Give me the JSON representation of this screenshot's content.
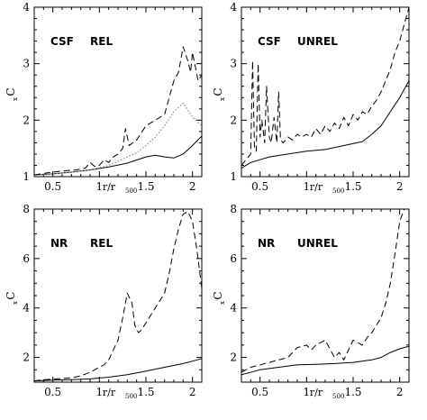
{
  "chart_data": [
    {
      "type": "line",
      "panel": "CSF REL",
      "labels": [
        "CSF",
        "REL"
      ],
      "xlabel": "r/r",
      "xlabel_sub": "500",
      "ylabel": "C",
      "ylabel_sub": "x",
      "xlim": [
        0.3,
        2.1
      ],
      "ylim": [
        1,
        4
      ],
      "xticks": [
        0.5,
        1,
        1.5,
        2
      ],
      "xtick_labels": [
        "0.5",
        "1",
        "1.5",
        "2"
      ],
      "yticks": [
        1,
        2,
        3,
        4
      ],
      "ytick_labels": [
        "1",
        "2",
        "3",
        "4"
      ],
      "series": [
        {
          "style": "solid",
          "x": [
            0.3,
            0.5,
            0.7,
            0.9,
            1.1,
            1.3,
            1.5,
            1.6,
            1.7,
            1.8,
            1.9,
            2.0,
            2.1
          ],
          "y": [
            1.03,
            1.05,
            1.08,
            1.12,
            1.17,
            1.24,
            1.35,
            1.38,
            1.35,
            1.33,
            1.4,
            1.55,
            1.72
          ]
        },
        {
          "style": "dotted",
          "x": [
            0.3,
            0.5,
            0.7,
            0.9,
            1.1,
            1.2,
            1.3,
            1.4,
            1.5,
            1.6,
            1.7,
            1.8,
            1.9,
            2.0,
            2.1
          ],
          "y": [
            1.03,
            1.05,
            1.08,
            1.12,
            1.2,
            1.27,
            1.35,
            1.42,
            1.55,
            1.7,
            1.9,
            2.15,
            2.3,
            2.05,
            1.9
          ]
        },
        {
          "style": "dashed",
          "x": [
            0.3,
            0.45,
            0.6,
            0.75,
            0.85,
            0.9,
            0.95,
            1.0,
            1.05,
            1.1,
            1.15,
            1.2,
            1.25,
            1.28,
            1.32,
            1.4,
            1.5,
            1.6,
            1.7,
            1.75,
            1.8,
            1.85,
            1.9,
            1.95,
            1.98,
            2.0,
            2.03,
            2.06,
            2.1
          ],
          "y": [
            1.03,
            1.07,
            1.1,
            1.12,
            1.15,
            1.25,
            1.18,
            1.2,
            1.3,
            1.25,
            1.35,
            1.4,
            1.5,
            1.85,
            1.55,
            1.65,
            1.9,
            2.0,
            2.1,
            2.4,
            2.7,
            2.85,
            3.3,
            3.05,
            2.85,
            3.2,
            2.95,
            2.7,
            2.8
          ]
        }
      ]
    },
    {
      "type": "line",
      "panel": "CSF UNREL",
      "labels": [
        "CSF",
        "UNREL"
      ],
      "xlabel": "r/r",
      "xlabel_sub": "500",
      "ylabel": "C",
      "ylabel_sub": "x",
      "xlim": [
        0.3,
        2.1
      ],
      "ylim": [
        1,
        4
      ],
      "xticks": [
        0.5,
        1,
        1.5,
        2
      ],
      "xtick_labels": [
        "0.5",
        "1",
        "1.5",
        "2"
      ],
      "yticks": [
        1,
        2,
        3,
        4
      ],
      "ytick_labels": [
        "1",
        "2",
        "3",
        "4"
      ],
      "series": [
        {
          "style": "solid",
          "x": [
            0.3,
            0.4,
            0.5,
            0.6,
            0.8,
            1.0,
            1.2,
            1.4,
            1.6,
            1.7,
            1.8,
            1.9,
            2.0,
            2.1
          ],
          "y": [
            1.15,
            1.25,
            1.3,
            1.35,
            1.4,
            1.45,
            1.48,
            1.55,
            1.62,
            1.75,
            1.9,
            2.15,
            2.4,
            2.7
          ]
        },
        {
          "style": "dashed",
          "x": [
            0.3,
            0.35,
            0.4,
            0.42,
            0.44,
            0.46,
            0.48,
            0.5,
            0.52,
            0.55,
            0.57,
            0.6,
            0.62,
            0.65,
            0.68,
            0.7,
            0.72,
            0.75,
            0.8,
            0.85,
            0.9,
            0.95,
            1.0,
            1.05,
            1.1,
            1.15,
            1.2,
            1.25,
            1.3,
            1.35,
            1.4,
            1.45,
            1.5,
            1.55,
            1.6,
            1.65,
            1.7,
            1.75,
            1.8,
            1.85,
            1.9,
            1.95,
            2.0,
            2.05,
            2.1
          ],
          "y": [
            1.2,
            1.3,
            1.4,
            3.05,
            1.5,
            1.45,
            3.0,
            1.7,
            2.0,
            1.6,
            2.6,
            1.7,
            1.6,
            2.05,
            1.6,
            2.5,
            1.65,
            1.6,
            1.7,
            1.65,
            1.75,
            1.7,
            1.75,
            1.7,
            1.85,
            1.75,
            1.9,
            1.8,
            1.95,
            1.85,
            2.05,
            1.9,
            2.1,
            2.0,
            2.15,
            2.1,
            2.25,
            2.35,
            2.5,
            2.7,
            2.9,
            3.2,
            3.4,
            3.7,
            4.0
          ]
        }
      ]
    },
    {
      "type": "line",
      "panel": "NR REL",
      "labels": [
        "NR",
        "REL"
      ],
      "xlabel": "r/r",
      "xlabel_sub": "500",
      "ylabel": "C",
      "ylabel_sub": "x",
      "xlim": [
        0.3,
        2.1
      ],
      "ylim": [
        1,
        8
      ],
      "xticks": [
        0.5,
        1,
        1.5,
        2
      ],
      "xtick_labels": [
        "0.5",
        "1",
        "1.5",
        "2"
      ],
      "yticks": [
        2,
        4,
        6,
        8
      ],
      "ytick_labels": [
        "2",
        "4",
        "6",
        "8"
      ],
      "series": [
        {
          "style": "solid",
          "x": [
            0.3,
            0.5,
            0.7,
            0.9,
            1.1,
            1.3,
            1.5,
            1.7,
            1.9,
            2.0,
            2.1
          ],
          "y": [
            1.05,
            1.08,
            1.1,
            1.13,
            1.2,
            1.3,
            1.45,
            1.6,
            1.75,
            1.85,
            1.95
          ]
        },
        {
          "style": "dashed",
          "x": [
            0.3,
            0.4,
            0.5,
            0.6,
            0.7,
            0.8,
            0.9,
            1.0,
            1.05,
            1.1,
            1.15,
            1.2,
            1.25,
            1.3,
            1.35,
            1.38,
            1.42,
            1.45,
            1.5,
            1.55,
            1.6,
            1.7,
            1.75,
            1.8,
            1.85,
            1.9,
            1.95,
            2.0,
            2.05,
            2.1
          ],
          "y": [
            1.05,
            1.1,
            1.12,
            1.15,
            1.18,
            1.25,
            1.4,
            1.6,
            1.7,
            1.9,
            2.3,
            2.7,
            3.6,
            4.6,
            4.2,
            3.3,
            3.0,
            3.1,
            3.4,
            3.7,
            4.0,
            4.6,
            5.4,
            6.4,
            7.2,
            7.8,
            7.9,
            7.5,
            6.3,
            4.8
          ]
        }
      ]
    },
    {
      "type": "line",
      "panel": "NR UNREL",
      "labels": [
        "NR",
        "UNREL"
      ],
      "xlabel": "r/r",
      "xlabel_sub": "500",
      "ylabel": "C",
      "ylabel_sub": "x",
      "xlim": [
        0.3,
        2.1
      ],
      "ylim": [
        1,
        8
      ],
      "xticks": [
        0.5,
        1,
        1.5,
        2
      ],
      "xtick_labels": [
        "0.5",
        "1",
        "1.5",
        "2"
      ],
      "yticks": [
        2,
        4,
        6,
        8
      ],
      "ytick_labels": [
        "2",
        "4",
        "6",
        "8"
      ],
      "series": [
        {
          "style": "solid",
          "x": [
            0.3,
            0.5,
            0.7,
            0.9,
            1.1,
            1.3,
            1.5,
            1.7,
            1.8,
            1.9,
            2.0,
            2.1
          ],
          "y": [
            1.3,
            1.5,
            1.6,
            1.7,
            1.72,
            1.75,
            1.8,
            1.9,
            2.0,
            2.2,
            2.35,
            2.45
          ]
        },
        {
          "style": "dashed",
          "x": [
            0.3,
            0.4,
            0.5,
            0.6,
            0.7,
            0.8,
            0.9,
            1.0,
            1.05,
            1.1,
            1.2,
            1.3,
            1.35,
            1.4,
            1.5,
            1.6,
            1.65,
            1.7,
            1.8,
            1.85,
            1.9,
            1.95,
            2.0,
            2.05
          ],
          "y": [
            1.4,
            1.6,
            1.7,
            1.8,
            1.9,
            2.0,
            2.4,
            2.5,
            2.3,
            2.5,
            2.7,
            2.0,
            2.2,
            1.9,
            2.7,
            2.5,
            2.8,
            3.0,
            3.6,
            4.2,
            5.0,
            6.2,
            7.5,
            8.0
          ]
        }
      ]
    }
  ]
}
